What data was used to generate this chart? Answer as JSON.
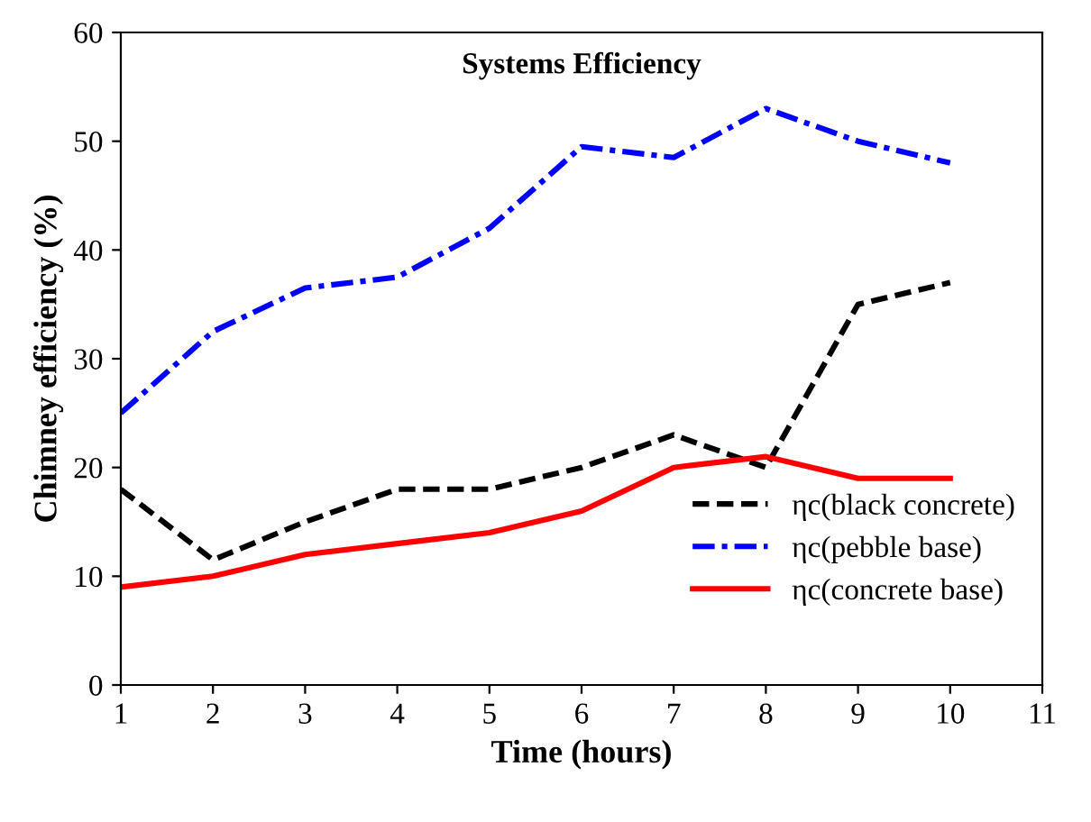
{
  "chart_data": {
    "type": "line",
    "title": "Systems Efficiency",
    "xlabel": "Time (hours)",
    "ylabel": "Chimney efficiency (%)",
    "x": [
      1,
      2,
      3,
      4,
      5,
      6,
      7,
      8,
      9,
      10
    ],
    "series": [
      {
        "name": "ηc(black concrete)",
        "color": "#000000",
        "line_style": "dashed",
        "values": [
          18,
          11.5,
          15,
          18,
          18,
          20,
          23,
          20,
          35,
          37
        ]
      },
      {
        "name": "ηc(pebble base)",
        "color": "#0000ff",
        "line_style": "dashdot",
        "values": [
          25,
          32.5,
          36.5,
          37.5,
          42,
          49.5,
          48.5,
          53,
          50,
          48
        ]
      },
      {
        "name": "ηc(concrete base)",
        "color": "#ff0000",
        "line_style": "solid",
        "values": [
          9,
          10,
          12,
          13,
          14,
          16,
          20,
          21,
          19,
          19
        ]
      }
    ],
    "xlim": [
      1,
      11
    ],
    "xticks": [
      1,
      2,
      3,
      4,
      5,
      6,
      7,
      8,
      9,
      10,
      11
    ],
    "ylim": [
      0,
      60
    ],
    "yticks": [
      0,
      10,
      20,
      30,
      40,
      50,
      60
    ],
    "grid": false,
    "legend": "bottom right",
    "marker": "none"
  }
}
